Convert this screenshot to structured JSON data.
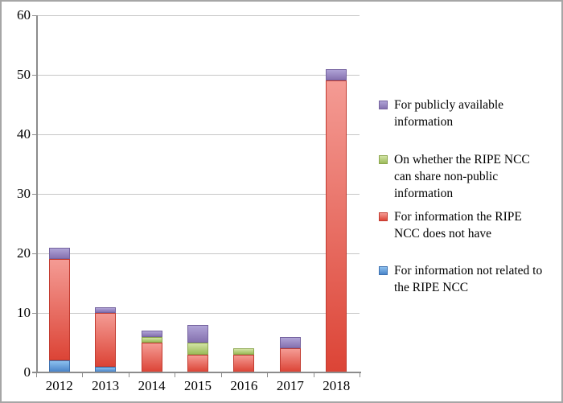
{
  "chart_data": {
    "type": "bar",
    "stacked": true,
    "title": "",
    "xlabel": "",
    "ylabel": "",
    "categories": [
      "2012",
      "2013",
      "2014",
      "2015",
      "2016",
      "2017",
      "2018"
    ],
    "series": [
      {
        "key": "blue",
        "name": "For information not related to the RIPE NCC",
        "values": [
          2,
          1,
          0,
          0,
          0,
          0,
          0
        ],
        "color_top": "#8cc0ee",
        "color_bottom": "#4a84c9",
        "color_border": "#3d71b0"
      },
      {
        "key": "red",
        "name": "For information the RIPE NCC does not have",
        "values": [
          17,
          9,
          5,
          3,
          3,
          4,
          49
        ],
        "color_top": "#f49b94",
        "color_bottom": "#dc4436",
        "color_border": "#c23b30"
      },
      {
        "key": "green",
        "name": "On whether the RIPE NCC can share non-public information",
        "values": [
          0,
          0,
          1,
          2,
          1,
          0,
          0
        ],
        "color_top": "#d2e3a4",
        "color_bottom": "#9cbb59",
        "color_border": "#8ca64e"
      },
      {
        "key": "purple",
        "name": "For publicly available information",
        "values": [
          2,
          1,
          1,
          3,
          0,
          2,
          2
        ],
        "color_top": "#afa3d6",
        "color_bottom": "#8672b0",
        "color_border": "#75639f"
      }
    ],
    "ylim": [
      0,
      60
    ],
    "yticks": [
      0,
      10,
      20,
      30,
      40,
      50,
      60
    ],
    "grid": true,
    "legend_position": "right",
    "legend": [
      {
        "series": "purple",
        "label": "For publicly available information"
      },
      {
        "series": "green",
        "label": "On whether the RIPE NCC can share non-public information"
      },
      {
        "series": "red",
        "label": "For information the RIPE NCC does not have"
      },
      {
        "series": "blue",
        "label": "For information not related to the RIPE NCC"
      }
    ]
  }
}
